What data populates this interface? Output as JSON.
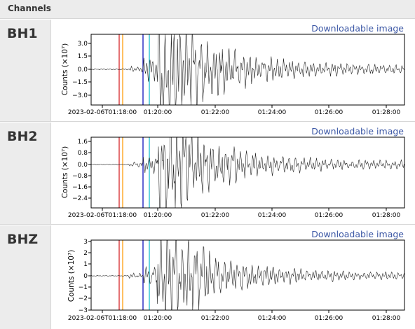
{
  "panel": {
    "title": "Channels"
  },
  "channels": [
    {
      "label": "BH1",
      "download_label": "Downloadable image",
      "ylabel": "Counts (×10⁷)",
      "yticks": [
        "3.0",
        "1.5",
        "0.0",
        "−1.5",
        "−3.0"
      ],
      "xticks": [
        "2023-02-06T01:18:00",
        "01:20:00",
        "01:22:00",
        "01:24:00",
        "01:26:00",
        "01:28:00"
      ],
      "line_colors": [
        "#d62728",
        "#ff9f0e",
        "#1111bb",
        "#17becf"
      ]
    },
    {
      "label": "BH2",
      "download_label": "Downloadable image",
      "ylabel": "Counts (×10⁷)",
      "yticks": [
        "1.6",
        "0.8",
        "0.0",
        "−0.8",
        "−1.6",
        "−2.4"
      ],
      "xticks": [
        "2023-02-06T01:18:00",
        "01:20:00",
        "01:22:00",
        "01:24:00",
        "01:26:00",
        "01:28:00"
      ],
      "line_colors": [
        "#d62728",
        "#ff9f0e",
        "#1111bb",
        "#17becf"
      ]
    },
    {
      "label": "BHZ",
      "download_label": "Downloadable image",
      "ylabel": "Counts (×10⁷)",
      "yticks": [
        "3",
        "2",
        "1",
        "0",
        "−1",
        "−2",
        "−3"
      ],
      "xticks": [
        "2023-02-06T01:18:00",
        "01:20:00",
        "01:22:00",
        "01:24:00",
        "01:26:00",
        "01:28:00"
      ],
      "line_colors": [
        "#d62728",
        "#ff9f0e",
        "#1111bb",
        "#17becf"
      ]
    }
  ]
}
